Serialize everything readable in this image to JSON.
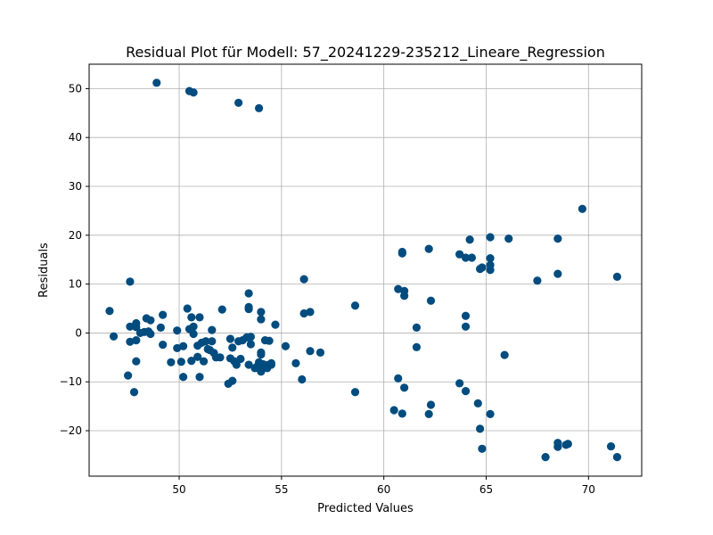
{
  "chart_data": {
    "type": "scatter",
    "title": "Residual Plot für Modell: 57_20241229-235212_Lineare_Regression",
    "xlabel": "Predicted Values",
    "ylabel": "Residuals",
    "xlim": [
      45.6,
      72.6
    ],
    "ylim": [
      -29.3,
      55.0
    ],
    "xticks": [
      50,
      55,
      60,
      65,
      70
    ],
    "yticks": [
      -20,
      -10,
      0,
      10,
      20,
      30,
      40,
      50
    ],
    "tick_labels_y": [
      "−20",
      "−10",
      "0",
      "10",
      "20",
      "30",
      "40",
      "50"
    ],
    "grid": true,
    "point_color": "#004c7f",
    "points": [
      [
        46.6,
        4.5
      ],
      [
        46.8,
        -0.7
      ],
      [
        47.5,
        -8.7
      ],
      [
        47.6,
        10.5
      ],
      [
        47.6,
        -1.8
      ],
      [
        47.6,
        1.3
      ],
      [
        47.8,
        -12.1
      ],
      [
        47.9,
        -1.5
      ],
      [
        47.9,
        -5.8
      ],
      [
        47.9,
        2.0
      ],
      [
        47.9,
        1.2
      ],
      [
        48.1,
        0.0
      ],
      [
        48.3,
        0.2
      ],
      [
        48.4,
        3.0
      ],
      [
        48.5,
        0.3
      ],
      [
        48.6,
        -0.2
      ],
      [
        48.6,
        2.6
      ],
      [
        48.9,
        51.2
      ],
      [
        49.1,
        1.1
      ],
      [
        49.2,
        -2.4
      ],
      [
        49.2,
        3.7
      ],
      [
        49.6,
        -6.0
      ],
      [
        49.9,
        0.5
      ],
      [
        49.9,
        -3.1
      ],
      [
        50.1,
        -5.9
      ],
      [
        50.2,
        -2.7
      ],
      [
        50.2,
        -9.0
      ],
      [
        50.4,
        5.0
      ],
      [
        50.5,
        0.8
      ],
      [
        50.5,
        49.5
      ],
      [
        50.6,
        -5.7
      ],
      [
        50.6,
        3.2
      ],
      [
        50.7,
        -0.2
      ],
      [
        50.7,
        49.2
      ],
      [
        50.7,
        1.3
      ],
      [
        50.9,
        -2.6
      ],
      [
        50.9,
        -4.9
      ],
      [
        51.0,
        3.2
      ],
      [
        51.0,
        -9.0
      ],
      [
        51.1,
        -2.0
      ],
      [
        51.2,
        -5.8
      ],
      [
        51.3,
        -1.7
      ],
      [
        51.4,
        -3.3
      ],
      [
        51.5,
        -3.5
      ],
      [
        51.6,
        -1.7
      ],
      [
        51.6,
        0.6
      ],
      [
        51.7,
        -4.1
      ],
      [
        51.8,
        -5.0
      ],
      [
        52.0,
        -5.0
      ],
      [
        52.1,
        4.8
      ],
      [
        52.4,
        -10.4
      ],
      [
        52.5,
        -1.2
      ],
      [
        52.5,
        -5.2
      ],
      [
        52.6,
        -9.8
      ],
      [
        52.6,
        -3.0
      ],
      [
        52.7,
        -5.8
      ],
      [
        52.8,
        -6.5
      ],
      [
        52.9,
        47.1
      ],
      [
        52.9,
        -1.7
      ],
      [
        53.0,
        -5.3
      ],
      [
        53.1,
        -1.5
      ],
      [
        53.3,
        -0.9
      ],
      [
        53.4,
        8.1
      ],
      [
        53.4,
        5.3
      ],
      [
        53.4,
        4.9
      ],
      [
        53.4,
        -6.5
      ],
      [
        53.5,
        -2.3
      ],
      [
        53.5,
        -0.8
      ],
      [
        53.7,
        -7.2
      ],
      [
        53.8,
        -6.9
      ],
      [
        53.9,
        -6.0
      ],
      [
        53.9,
        46.0
      ],
      [
        54.0,
        4.3
      ],
      [
        54.0,
        2.8
      ],
      [
        54.0,
        -4.0
      ],
      [
        54.0,
        -4.4
      ],
      [
        54.0,
        -7.9
      ],
      [
        54.1,
        -6.4
      ],
      [
        54.2,
        -1.5
      ],
      [
        54.3,
        -7.2
      ],
      [
        54.3,
        -6.6
      ],
      [
        54.4,
        -1.6
      ],
      [
        54.5,
        -6.5
      ],
      [
        54.5,
        -6.2
      ],
      [
        54.7,
        1.7
      ],
      [
        55.2,
        -2.7
      ],
      [
        55.7,
        -6.2
      ],
      [
        56.0,
        -9.5
      ],
      [
        56.1,
        11.0
      ],
      [
        56.1,
        4.0
      ],
      [
        56.4,
        4.3
      ],
      [
        56.4,
        -3.7
      ],
      [
        56.9,
        -4.0
      ],
      [
        58.6,
        5.6
      ],
      [
        58.6,
        -12.1
      ],
      [
        60.5,
        -15.8
      ],
      [
        60.7,
        9.0
      ],
      [
        60.7,
        -9.3
      ],
      [
        60.9,
        16.6
      ],
      [
        60.9,
        16.3
      ],
      [
        60.9,
        -16.5
      ],
      [
        61.0,
        8.6
      ],
      [
        61.0,
        7.6
      ],
      [
        61.0,
        -11.2
      ],
      [
        61.6,
        1.1
      ],
      [
        61.6,
        -2.9
      ],
      [
        62.2,
        17.2
      ],
      [
        62.2,
        -16.6
      ],
      [
        62.3,
        6.6
      ],
      [
        62.3,
        -14.7
      ],
      [
        63.7,
        16.1
      ],
      [
        63.7,
        -10.3
      ],
      [
        64.0,
        15.4
      ],
      [
        64.0,
        3.5
      ],
      [
        64.0,
        1.3
      ],
      [
        64.0,
        -11.9
      ],
      [
        64.2,
        19.1
      ],
      [
        64.3,
        15.4
      ],
      [
        64.6,
        -14.4
      ],
      [
        64.7,
        13.1
      ],
      [
        64.7,
        -19.6
      ],
      [
        64.8,
        13.4
      ],
      [
        64.8,
        -23.7
      ],
      [
        65.2,
        13.9
      ],
      [
        65.2,
        12.9
      ],
      [
        65.2,
        19.6
      ],
      [
        65.2,
        15.3
      ],
      [
        65.2,
        -16.6
      ],
      [
        65.9,
        -4.5
      ],
      [
        66.1,
        19.3
      ],
      [
        67.5,
        10.7
      ],
      [
        67.9,
        -25.4
      ],
      [
        68.5,
        19.3
      ],
      [
        68.5,
        12.1
      ],
      [
        68.5,
        -22.5
      ],
      [
        68.5,
        -23.3
      ],
      [
        68.9,
        -22.9
      ],
      [
        69.0,
        -22.7
      ],
      [
        69.7,
        25.4
      ],
      [
        71.1,
        -23.2
      ],
      [
        71.4,
        11.5
      ],
      [
        71.4,
        -25.4
      ]
    ]
  }
}
